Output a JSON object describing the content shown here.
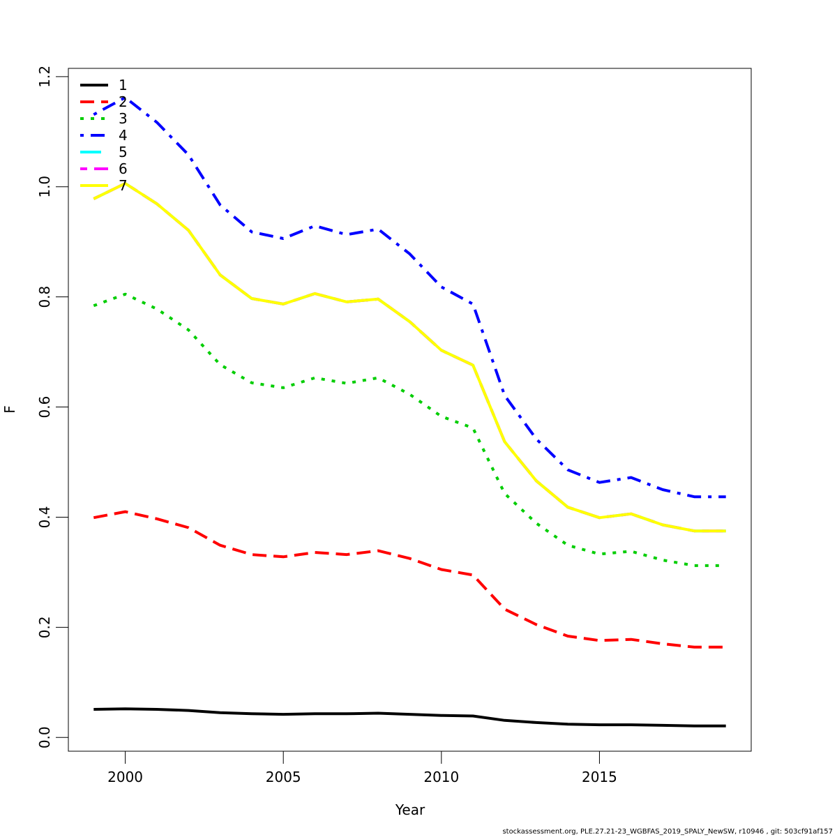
{
  "chart_data": {
    "type": "line",
    "title": "",
    "xlabel": "Year",
    "ylabel": "F",
    "xlim": [
      1998.2,
      2019.8
    ],
    "ylim": [
      -0.025,
      1.215
    ],
    "x_ticks": [
      2000,
      2005,
      2010,
      2015
    ],
    "x_tick_labels": [
      "2000",
      "2005",
      "2010",
      "2015"
    ],
    "y_ticks": [
      0.0,
      0.2,
      0.4,
      0.6,
      0.8,
      1.0,
      1.2
    ],
    "y_tick_labels": [
      "0.0",
      "0.2",
      "0.4",
      "0.6",
      "0.8",
      "1.0",
      "1.2"
    ],
    "grid": false,
    "legend_position": "top-left",
    "x": [
      1999,
      2000,
      2001,
      2002,
      2003,
      2004,
      2005,
      2006,
      2007,
      2008,
      2009,
      2010,
      2011,
      2012,
      2013,
      2014,
      2015,
      2016,
      2017,
      2018,
      2019
    ],
    "series": [
      {
        "name": "1",
        "color": "#000000",
        "dash": "solid",
        "values": [
          0.051,
          0.052,
          0.051,
          0.049,
          0.045,
          0.043,
          0.042,
          0.043,
          0.043,
          0.044,
          0.042,
          0.04,
          0.039,
          0.031,
          0.027,
          0.024,
          0.023,
          0.023,
          0.022,
          0.021,
          0.021
        ]
      },
      {
        "name": "2",
        "color": "#ff0000",
        "dash": "dashed",
        "values": [
          0.399,
          0.41,
          0.397,
          0.381,
          0.349,
          0.332,
          0.328,
          0.336,
          0.332,
          0.339,
          0.325,
          0.305,
          0.295,
          0.233,
          0.205,
          0.184,
          0.176,
          0.178,
          0.17,
          0.164,
          0.164
        ]
      },
      {
        "name": "3",
        "color": "#00cd00",
        "dash": "dotted",
        "values": [
          0.784,
          0.805,
          0.778,
          0.74,
          0.677,
          0.644,
          0.635,
          0.653,
          0.643,
          0.653,
          0.623,
          0.583,
          0.562,
          0.443,
          0.389,
          0.349,
          0.333,
          0.338,
          0.322,
          0.312,
          0.312
        ]
      },
      {
        "name": "4",
        "color": "#0000ff",
        "dash": "dotdash",
        "values": [
          1.131,
          1.162,
          1.117,
          1.058,
          0.967,
          0.918,
          0.906,
          0.929,
          0.913,
          0.923,
          0.878,
          0.818,
          0.787,
          0.621,
          0.542,
          0.486,
          0.463,
          0.472,
          0.45,
          0.437,
          0.437
        ]
      },
      {
        "name": "5",
        "color": "#00ffff",
        "dash": "longdash",
        "values": [
          0.978,
          1.006,
          0.969,
          0.921,
          0.84,
          0.797,
          0.787,
          0.806,
          0.791,
          0.796,
          0.755,
          0.703,
          0.676,
          0.537,
          0.466,
          0.418,
          0.399,
          0.406,
          0.386,
          0.375,
          0.375
        ]
      },
      {
        "name": "6",
        "color": "#ff00ff",
        "dash": "twodash",
        "values": [
          0.978,
          1.006,
          0.969,
          0.921,
          0.84,
          0.797,
          0.787,
          0.806,
          0.791,
          0.796,
          0.755,
          0.703,
          0.676,
          0.537,
          0.466,
          0.418,
          0.399,
          0.406,
          0.386,
          0.375,
          0.375
        ]
      },
      {
        "name": "7",
        "color": "#ffff00",
        "dash": "solid",
        "values": [
          0.978,
          1.006,
          0.969,
          0.921,
          0.84,
          0.797,
          0.787,
          0.806,
          0.791,
          0.796,
          0.755,
          0.703,
          0.676,
          0.537,
          0.466,
          0.418,
          0.399,
          0.406,
          0.386,
          0.375,
          0.375
        ]
      }
    ]
  },
  "footer": "stockassessment.org, PLE.27.21-23_WGBFAS_2019_SPALY_NewSW, r10946 , git: 503cf91af157"
}
